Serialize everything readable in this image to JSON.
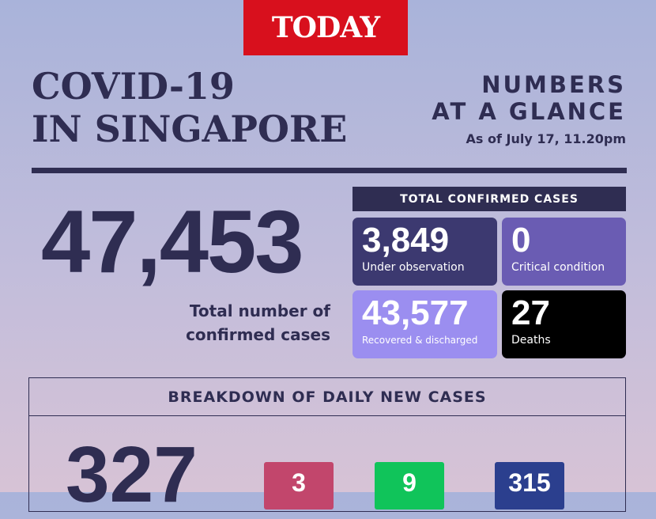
{
  "brand": {
    "logo_text": "TODAY",
    "color": "#d8101d"
  },
  "header": {
    "title_line1": "COVID-19",
    "title_line2": "IN SINGAPORE",
    "glance_line1": "NUMBERS",
    "glance_line2": "AT A GLANCE",
    "as_of": "As of July 17, 11.20pm"
  },
  "total": {
    "value": "47,453",
    "label_line1": "Total number of",
    "label_line2": "confirmed cases"
  },
  "confirmed": {
    "header": "TOTAL CONFIRMED CASES",
    "cards": [
      {
        "value": "3,849",
        "label": "Under observation",
        "color": "#3c3970"
      },
      {
        "value": "0",
        "label": "Critical condition",
        "color": "#6a5cb3"
      },
      {
        "value": "43,577",
        "label": "Recovered & discharged",
        "color": "#9b8ef0"
      },
      {
        "value": "27",
        "label": "Deaths",
        "color": "#000000"
      }
    ]
  },
  "breakdown": {
    "header": "BREAKDOWN OF DAILY NEW CASES",
    "total": "327",
    "items": [
      {
        "value": "3",
        "color": "#c2466c"
      },
      {
        "value": "9",
        "color": "#10c45a"
      },
      {
        "value": "315",
        "color": "#2b3f8e"
      }
    ]
  }
}
